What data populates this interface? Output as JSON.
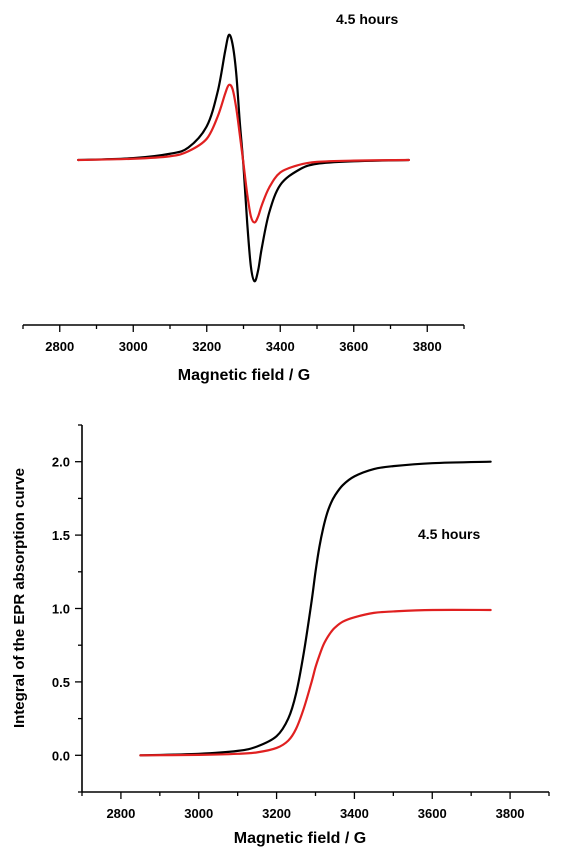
{
  "chart_data": [
    {
      "type": "line",
      "title": "",
      "annotation": "4.5 hours",
      "xlabel": "Magnetic field / G",
      "ylabel": "",
      "xlim": [
        2700,
        3900
      ],
      "xticks": [
        "2800",
        "3000",
        "3200",
        "3400",
        "3600",
        "3800"
      ],
      "y_axis_shown": false,
      "ylim": [
        -1.2,
        1.2
      ],
      "grid": false,
      "series": [
        {
          "color": "#000000",
          "x": [
            2850,
            3000,
            3100,
            3150,
            3200,
            3230,
            3250,
            3260,
            3270,
            3280,
            3290,
            3300,
            3310,
            3320,
            3330,
            3340,
            3350,
            3370,
            3400,
            3450,
            3500,
            3600,
            3750
          ],
          "y": [
            0.0,
            0.015,
            0.05,
            0.1,
            0.27,
            0.55,
            0.87,
            1.0,
            0.93,
            0.7,
            0.3,
            -0.05,
            -0.5,
            -0.85,
            -0.97,
            -0.88,
            -0.7,
            -0.42,
            -0.2,
            -0.08,
            -0.03,
            -0.01,
            0.0
          ]
        },
        {
          "color": "#e02020",
          "x": [
            2850,
            3000,
            3100,
            3150,
            3200,
            3230,
            3250,
            3260,
            3270,
            3280,
            3290,
            3300,
            3310,
            3320,
            3330,
            3340,
            3350,
            3370,
            3400,
            3450,
            3500,
            3600,
            3750
          ],
          "y": [
            0.0,
            0.01,
            0.03,
            0.07,
            0.17,
            0.35,
            0.53,
            0.6,
            0.57,
            0.42,
            0.2,
            -0.03,
            -0.27,
            -0.45,
            -0.5,
            -0.45,
            -0.36,
            -0.22,
            -0.1,
            -0.04,
            -0.015,
            -0.005,
            0.0
          ]
        }
      ]
    },
    {
      "type": "line",
      "title": "",
      "annotation": "4.5 hours",
      "xlabel": "Magnetic field / G",
      "ylabel": "Integral of the EPR absorption curve",
      "xlim": [
        2700,
        3900
      ],
      "ylim": [
        -0.25,
        2.25
      ],
      "xticks": [
        "2800",
        "3000",
        "3200",
        "3400",
        "3600",
        "3800"
      ],
      "yticks": [
        "0.0",
        "0.5",
        "1.0",
        "1.5",
        "2.0"
      ],
      "grid": false,
      "series": [
        {
          "color": "#000000",
          "x": [
            2850,
            3000,
            3100,
            3150,
            3200,
            3230,
            3250,
            3270,
            3290,
            3300,
            3310,
            3320,
            3330,
            3340,
            3350,
            3370,
            3400,
            3450,
            3500,
            3600,
            3750
          ],
          "y": [
            0.0,
            0.01,
            0.03,
            0.06,
            0.13,
            0.25,
            0.42,
            0.7,
            1.05,
            1.25,
            1.42,
            1.55,
            1.65,
            1.72,
            1.77,
            1.84,
            1.9,
            1.95,
            1.97,
            1.99,
            2.0
          ]
        },
        {
          "color": "#e02020",
          "x": [
            2850,
            3000,
            3100,
            3150,
            3200,
            3230,
            3250,
            3270,
            3290,
            3300,
            3310,
            3320,
            3330,
            3340,
            3350,
            3370,
            3400,
            3450,
            3500,
            3600,
            3750
          ],
          "y": [
            0.0,
            0.003,
            0.01,
            0.02,
            0.05,
            0.1,
            0.18,
            0.32,
            0.5,
            0.6,
            0.68,
            0.75,
            0.8,
            0.84,
            0.87,
            0.91,
            0.94,
            0.97,
            0.98,
            0.99,
            0.99
          ]
        }
      ]
    }
  ]
}
